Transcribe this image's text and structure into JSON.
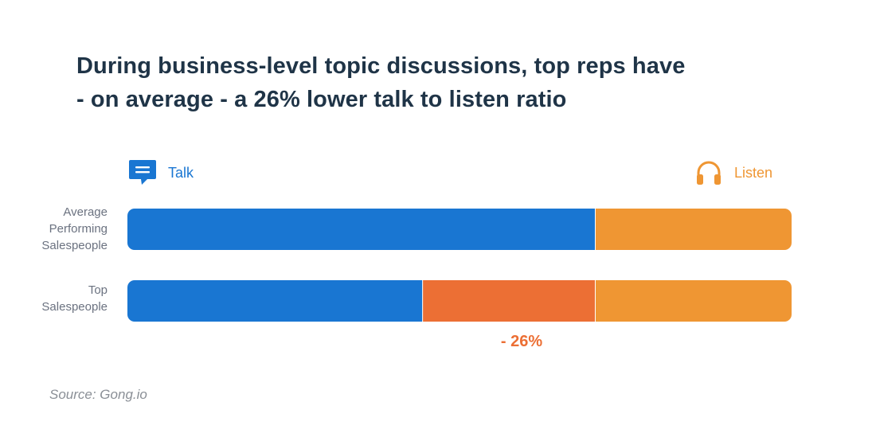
{
  "chart_data": {
    "type": "bar",
    "orientation": "horizontal",
    "stacked": true,
    "title_lines": [
      "During business-level topic discussions, top reps have",
      "- on average - a 26% lower talk to listen ratio"
    ],
    "categories": [
      "Average Performing Salespeople",
      "Top Salespeople"
    ],
    "category_label_lines": [
      [
        "Average",
        "Performing",
        "Salespeople"
      ],
      [
        "Top",
        "Salespeople"
      ]
    ],
    "legend": {
      "talk": "Talk",
      "listen": "Listen"
    },
    "series": [
      {
        "name": "Talk",
        "values": [
          70.5,
          44.5
        ]
      },
      {
        "values": [
          0,
          26
        ]
      },
      {
        "name": "Listen",
        "values": [
          29.5,
          29.5
        ]
      }
    ],
    "xlim": [
      0,
      100
    ],
    "annotation": "- 26%",
    "source": "Source: Gong.io",
    "colors": {
      "talk": "#1976d2",
      "difference": "#ec6f34",
      "listen": "#ef9633",
      "title": "#1f3447"
    }
  }
}
